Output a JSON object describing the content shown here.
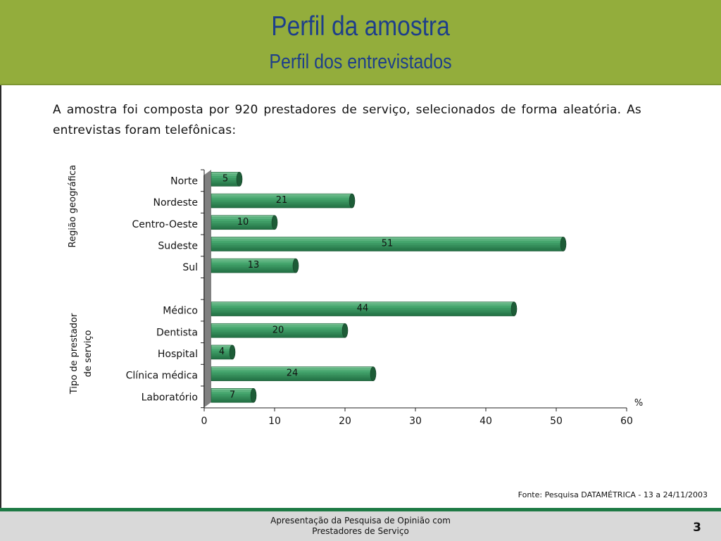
{
  "header": {
    "title": "Perfil da amostra",
    "subtitle": "Perfil dos entrevistados",
    "background_color": "#93ad3c",
    "title_color": "#1e3f8a"
  },
  "intro_text": "A amostra foi composta por 920 prestadores de serviço, selecionados de forma aleatória. As entrevistas foram telefônicas:",
  "source": "Fonte: Pesquisa DATAMÉTRICA - 13 a 24/11/2003",
  "footer": {
    "line1": "Apresentação da Pesquisa de Opinião com",
    "line2": "Prestadores de Serviço",
    "page_number": "3",
    "accent_color": "#1e7a45"
  },
  "chart_data": {
    "type": "bar",
    "orientation": "horizontal",
    "style": "3d-cylinder",
    "bar_color": "#3a9a63",
    "xlim": [
      0,
      60
    ],
    "xticks": [
      "0",
      "10",
      "20",
      "30",
      "40",
      "50",
      "60"
    ],
    "unit_label": "%",
    "groups": [
      {
        "label": "Região geográfica",
        "categories": [
          "Norte",
          "Nordeste",
          "Centro-Oeste",
          "Sudeste",
          "Sul"
        ],
        "values": [
          5,
          21,
          10,
          51,
          13
        ]
      },
      {
        "label": "Tipo de prestador de serviço",
        "label_lines": [
          "Tipo de prestador",
          "de serviço"
        ],
        "categories": [
          "Médico",
          "Dentista",
          "Hospital",
          "Clínica médica",
          "Laboratório"
        ],
        "values": [
          44,
          20,
          4,
          24,
          7
        ]
      }
    ]
  }
}
